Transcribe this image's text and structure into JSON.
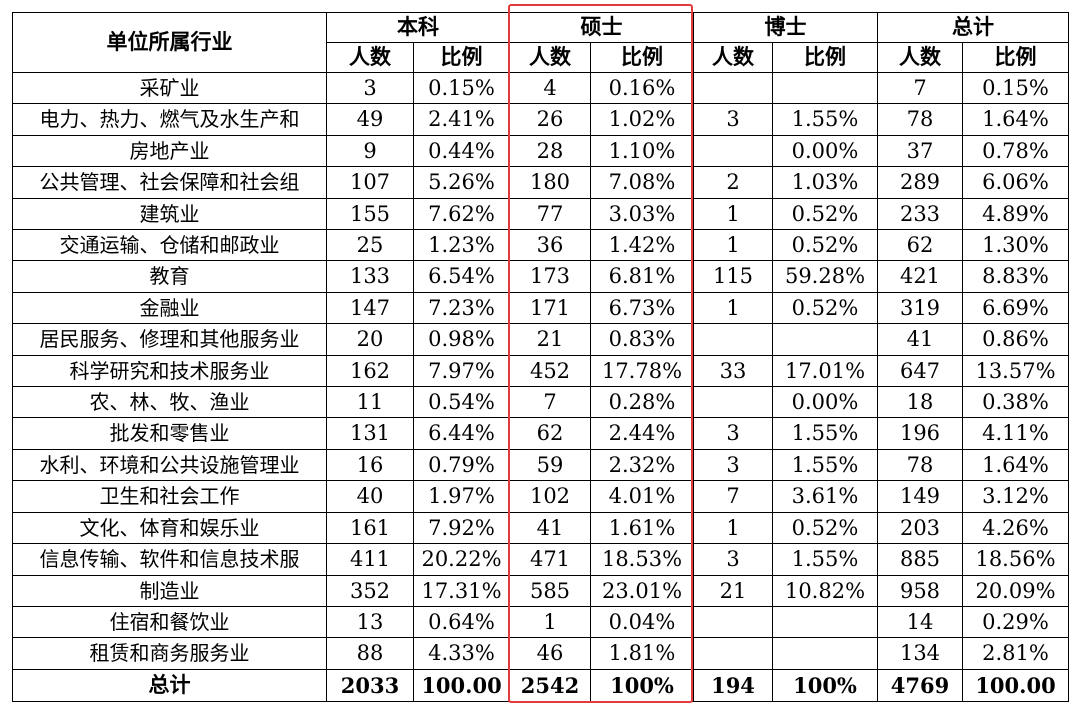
{
  "header": {
    "industry_label": "单位所属行业",
    "groups": [
      "本科",
      "硕士",
      "博士",
      "总计"
    ],
    "sub_headers": [
      "人数",
      "比例"
    ]
  },
  "rows": [
    {
      "industry": "采矿业",
      "values": [
        "3",
        "0.15%",
        "4",
        "0.16%",
        "",
        "",
        "7",
        "0.15%"
      ]
    },
    {
      "industry": "电力、热力、燃气及水生产和",
      "values": [
        "49",
        "2.41%",
        "26",
        "1.02%",
        "3",
        "1.55%",
        "78",
        "1.64%"
      ]
    },
    {
      "industry": "房地产业",
      "values": [
        "9",
        "0.44%",
        "28",
        "1.10%",
        "",
        "0.00%",
        "37",
        "0.78%"
      ]
    },
    {
      "industry": "公共管理、社会保障和社会组",
      "values": [
        "107",
        "5.26%",
        "180",
        "7.08%",
        "2",
        "1.03%",
        "289",
        "6.06%"
      ]
    },
    {
      "industry": "建筑业",
      "values": [
        "155",
        "7.62%",
        "77",
        "3.03%",
        "1",
        "0.52%",
        "233",
        "4.89%"
      ]
    },
    {
      "industry": "交通运输、仓储和邮政业",
      "values": [
        "25",
        "1.23%",
        "36",
        "1.42%",
        "1",
        "0.52%",
        "62",
        "1.30%"
      ]
    },
    {
      "industry": "教育",
      "values": [
        "133",
        "6.54%",
        "173",
        "6.81%",
        "115",
        "59.28%",
        "421",
        "8.83%"
      ]
    },
    {
      "industry": "金融业",
      "values": [
        "147",
        "7.23%",
        "171",
        "6.73%",
        "1",
        "0.52%",
        "319",
        "6.69%"
      ]
    },
    {
      "industry": "居民服务、修理和其他服务业",
      "values": [
        "20",
        "0.98%",
        "21",
        "0.83%",
        "",
        "",
        "41",
        "0.86%"
      ]
    },
    {
      "industry": "科学研究和技术服务业",
      "values": [
        "162",
        "7.97%",
        "452",
        "17.78%",
        "33",
        "17.01%",
        "647",
        "13.57%"
      ]
    },
    {
      "industry": "农、林、牧、渔业",
      "values": [
        "11",
        "0.54%",
        "7",
        "0.28%",
        "",
        "0.00%",
        "18",
        "0.38%"
      ]
    },
    {
      "industry": "批发和零售业",
      "values": [
        "131",
        "6.44%",
        "62",
        "2.44%",
        "3",
        "1.55%",
        "196",
        "4.11%"
      ]
    },
    {
      "industry": "水利、环境和公共设施管理业",
      "values": [
        "16",
        "0.79%",
        "59",
        "2.32%",
        "3",
        "1.55%",
        "78",
        "1.64%"
      ]
    },
    {
      "industry": "卫生和社会工作",
      "values": [
        "40",
        "1.97%",
        "102",
        "4.01%",
        "7",
        "3.61%",
        "149",
        "3.12%"
      ]
    },
    {
      "industry": "文化、体育和娱乐业",
      "values": [
        "161",
        "7.92%",
        "41",
        "1.61%",
        "1",
        "0.52%",
        "203",
        "4.26%"
      ]
    },
    {
      "industry": "信息传输、软件和信息技术服",
      "values": [
        "411",
        "20.22%",
        "471",
        "18.53%",
        "3",
        "1.55%",
        "885",
        "18.56%"
      ]
    },
    {
      "industry": "制造业",
      "values": [
        "352",
        "17.31%",
        "585",
        "23.01%",
        "21",
        "10.82%",
        "958",
        "20.09%"
      ]
    },
    {
      "industry": "住宿和餐饮业",
      "values": [
        "13",
        "0.64%",
        "1",
        "0.04%",
        "",
        "",
        "14",
        "0.29%"
      ]
    },
    {
      "industry": "租赁和商务服务业",
      "values": [
        "88",
        "4.33%",
        "46",
        "1.81%",
        "",
        "",
        "134",
        "2.81%"
      ]
    }
  ],
  "total": {
    "label": "总计",
    "values": [
      "2033",
      "100.00",
      "2542",
      "100%",
      "194",
      "100%",
      "4769",
      "100.00"
    ]
  },
  "colors": {
    "highlight_box": "#e33b3b"
  }
}
